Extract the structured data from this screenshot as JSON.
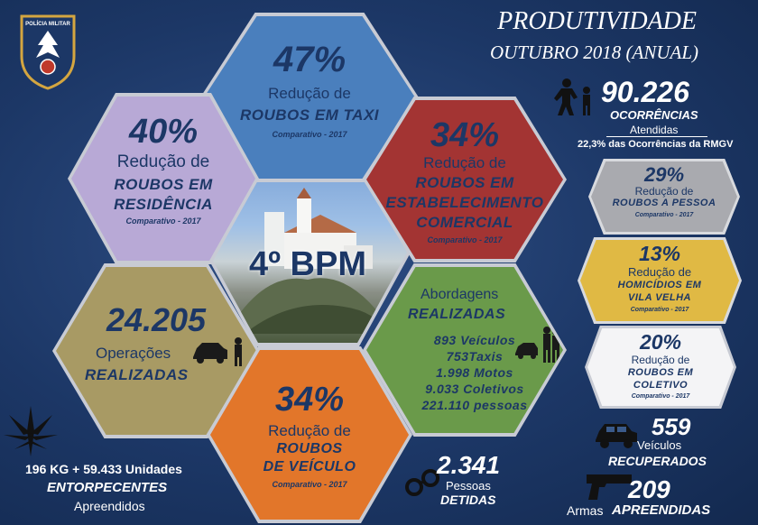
{
  "title": {
    "line1": "PRODUTIVIDADE",
    "line2": "OUTUBRO 2018 (ANUAL)"
  },
  "emblem": {
    "label": "POLÍCIA MILITAR"
  },
  "center": {
    "label": "4º BPM"
  },
  "hex_taxi": {
    "pct": "47%",
    "line1": "Redução de",
    "line2": "ROUBOS EM TAXI",
    "cmp": "Comparativo - 2017",
    "color": "#4a7fbd"
  },
  "hex_residencia": {
    "pct": "40%",
    "line1": "Redução de",
    "line2": "ROUBOS EM",
    "line3": "RESIDÊNCIA",
    "cmp": "Comparativo - 2017",
    "color": "#b8a9d6"
  },
  "hex_comercial": {
    "pct": "34%",
    "line1": "Redução de",
    "line2": "ROUBOS EM",
    "line3": "ESTABELECIMENTO",
    "line4": "COMERCIAL",
    "cmp": "Comparativo - 2017",
    "color": "#a33433"
  },
  "hex_operacoes": {
    "value": "24.205",
    "line1": "Operações",
    "line2": "REALIZADAS",
    "color": "#a89a64"
  },
  "hex_abordagens": {
    "line1": "Abordagens",
    "line2": "REALIZADAS",
    "items": [
      "893 Veículos",
      "753Taxis",
      "1.998 Motos",
      "9.033 Coletivos",
      "221.110 pessoas"
    ],
    "color": "#6a9a4a"
  },
  "hex_veiculo": {
    "pct": "34%",
    "line1": "Redução de",
    "line2": "ROUBOS",
    "line3": "DE VEÍCULO",
    "cmp": "Comparativo - 2017",
    "color": "#e2762a"
  },
  "ocorrencias": {
    "value": "90.226",
    "label": "OCORRÊNCIAS",
    "sub": "Atendidas",
    "note": "22,3% das Ocorrências da RMGV"
  },
  "pill_pessoa": {
    "pct": "29%",
    "line1": "Redução de",
    "line2": "ROUBOS A PESSOA",
    "cmp": "Comparativo - 2017",
    "color": "#a9aaaf"
  },
  "pill_homicidios": {
    "pct": "13%",
    "line1": "Redução de",
    "line2": "HOMICÍDIOS EM",
    "line3": "VILA VELHA",
    "cmp": "Comparativo - 2017",
    "color": "#e0b944"
  },
  "pill_coletivo": {
    "pct": "20%",
    "line1": "Redução de",
    "line2": "ROUBOS EM",
    "line3": "COLETIVO",
    "cmp": "Comparativo - 2017",
    "color": "#f4f4f6"
  },
  "veiculos": {
    "value": "559",
    "line1": "Veículos",
    "line2": "RECUPERADOS"
  },
  "armas": {
    "value": "209",
    "line1": "Armas",
    "line2": "APREENDIDAS"
  },
  "pessoas": {
    "value": "2.341",
    "line1": "Pessoas",
    "line2": "DETIDAS"
  },
  "entorpecentes": {
    "line1": "196 KG + 59.433 Unidades",
    "line2": "ENTORPECENTES",
    "line3": "Apreendidos"
  }
}
